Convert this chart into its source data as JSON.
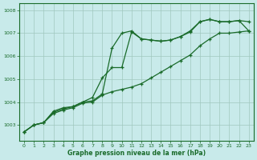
{
  "x": [
    0,
    1,
    2,
    3,
    4,
    5,
    6,
    7,
    8,
    9,
    10,
    11,
    12,
    13,
    14,
    15,
    16,
    17,
    18,
    19,
    20,
    21,
    22,
    23
  ],
  "line1_y": [
    1002.7,
    1003.0,
    1003.1,
    1003.6,
    1003.75,
    1003.8,
    1004.0,
    1004.05,
    1004.35,
    1006.35,
    1007.0,
    1007.1,
    1006.75,
    1006.7,
    1006.65,
    1006.7,
    1006.85,
    1007.05,
    1007.5,
    1007.6,
    1007.5,
    1007.5,
    1007.55,
    1007.1
  ],
  "line2_y": [
    1002.7,
    1003.0,
    1003.1,
    1003.5,
    1003.65,
    1003.75,
    1003.95,
    1004.0,
    1004.3,
    1004.45,
    1004.55,
    1004.65,
    1004.8,
    1005.05,
    1005.3,
    1005.55,
    1005.8,
    1006.05,
    1006.45,
    1006.75,
    1007.0,
    1007.0,
    1007.05,
    1007.1
  ],
  "line3_y": [
    1002.7,
    1003.0,
    1003.1,
    1003.55,
    1003.7,
    1003.8,
    1004.0,
    1004.2,
    1005.05,
    1005.5,
    1005.5,
    1007.05,
    1006.75,
    1006.7,
    1006.65,
    1006.7,
    1006.85,
    1007.1,
    1007.5,
    1007.6,
    1007.5,
    1007.5,
    1007.55,
    1007.5
  ],
  "bg_color": "#c8eaea",
  "line_color": "#1a6b2a",
  "grid_color": "#a0c8be",
  "xlabel": "Graphe pression niveau de la mer (hPa)",
  "ylim_min": 1002.3,
  "ylim_max": 1008.3,
  "yticks": [
    1003,
    1004,
    1005,
    1006,
    1007,
    1008
  ],
  "xticks": [
    0,
    1,
    2,
    3,
    4,
    5,
    6,
    7,
    8,
    9,
    10,
    11,
    12,
    13,
    14,
    15,
    16,
    17,
    18,
    19,
    20,
    21,
    22,
    23
  ]
}
